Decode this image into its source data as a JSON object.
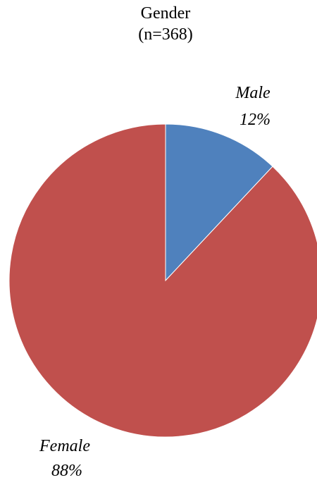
{
  "chart_data": {
    "type": "pie",
    "title": "Gender",
    "subtitle": "(n=368)",
    "slices": [
      {
        "label": "Male",
        "percent_label": "12%",
        "value": 12,
        "color": "#4f81bd"
      },
      {
        "label": "Female",
        "percent_label": "88%",
        "value": 88,
        "color": "#c0504d"
      }
    ],
    "legend": "none",
    "data_labels": "outside, italic, category name and percentage"
  }
}
